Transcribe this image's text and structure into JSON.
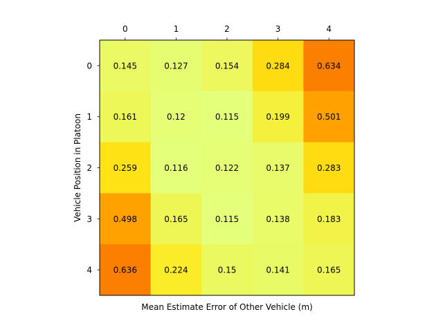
{
  "chart_data": {
    "type": "heatmap",
    "title": "",
    "xlabel": "Mean Estimate Error of Other Vehicle (m)",
    "ylabel": "Vehicle Position in Platoon",
    "x_categories": [
      "0",
      "1",
      "2",
      "3",
      "4"
    ],
    "y_categories": [
      "0",
      "1",
      "2",
      "3",
      "4"
    ],
    "x_axis_position": "top",
    "colormap": "Wistia",
    "grid": false,
    "values": [
      [
        0.145,
        0.127,
        0.154,
        0.284,
        0.634
      ],
      [
        0.161,
        0.12,
        0.115,
        0.199,
        0.501
      ],
      [
        0.259,
        0.116,
        0.122,
        0.137,
        0.283
      ],
      [
        0.498,
        0.165,
        0.115,
        0.138,
        0.183
      ],
      [
        0.636,
        0.224,
        0.15,
        0.141,
        0.165
      ]
    ],
    "value_labels": [
      [
        "0.145",
        "0.127",
        "0.154",
        "0.284",
        "0.634"
      ],
      [
        "0.161",
        "0.12",
        "0.115",
        "0.199",
        "0.501"
      ],
      [
        "0.259",
        "0.116",
        "0.122",
        "0.137",
        "0.283"
      ],
      [
        "0.498",
        "0.165",
        "0.115",
        "0.138",
        "0.183"
      ],
      [
        "0.636",
        "0.224",
        "0.15",
        "0.141",
        "0.165"
      ]
    ]
  }
}
